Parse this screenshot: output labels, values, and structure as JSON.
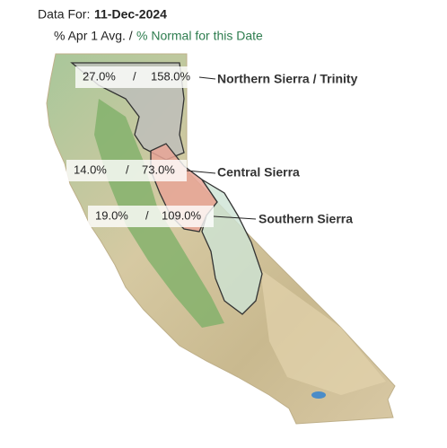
{
  "header": {
    "label": "Data For:",
    "date": "11-Dec-2024"
  },
  "legend": {
    "apr1": "% Apr 1 Avg. /",
    "normal": "% Normal for this Date"
  },
  "regions": [
    {
      "name": "Northern Sierra / Trinity",
      "apr1": "27.0%",
      "separator": "/",
      "normal": "158.0%"
    },
    {
      "name": "Central Sierra",
      "apr1": "14.0%",
      "separator": "/",
      "normal": "73.0%"
    },
    {
      "name": "Southern Sierra",
      "apr1": "19.0%",
      "separator": "/",
      "normal": "109.0%"
    }
  ]
}
